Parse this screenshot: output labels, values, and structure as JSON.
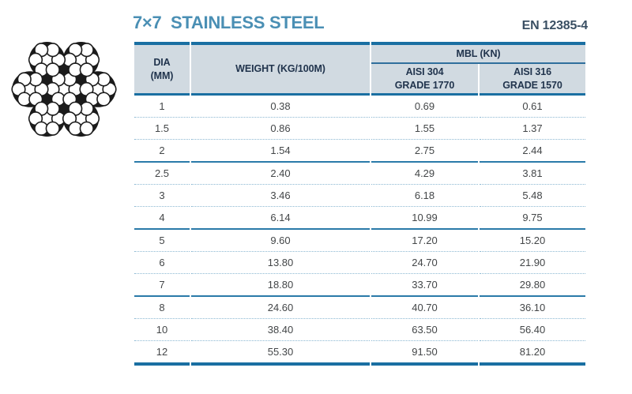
{
  "header": {
    "title": "7×7  STAINLESS STEEL",
    "standard": "EN 12385-4"
  },
  "diagram": {
    "name": "7x7-wire-rope-cross-section",
    "strands": 7,
    "wires_per_strand": 7
  },
  "table": {
    "columns": {
      "dia": [
        "DIA",
        "(MM)"
      ],
      "weight": "WEIGHT (KG/100M)",
      "mbl": "MBL (KN)",
      "aisi304": [
        "AISI 304",
        "GRADE 1770"
      ],
      "aisi316": [
        "AISI 316",
        "GRADE 1570"
      ]
    },
    "rows": [
      {
        "dia": "1",
        "weight": "0.38",
        "aisi304": "0.69",
        "aisi316": "0.61",
        "group_end": false
      },
      {
        "dia": "1.5",
        "weight": "0.86",
        "aisi304": "1.55",
        "aisi316": "1.37",
        "group_end": false
      },
      {
        "dia": "2",
        "weight": "1.54",
        "aisi304": "2.75",
        "aisi316": "2.44",
        "group_end": true
      },
      {
        "dia": "2.5",
        "weight": "2.40",
        "aisi304": "4.29",
        "aisi316": "3.81",
        "group_end": false
      },
      {
        "dia": "3",
        "weight": "3.46",
        "aisi304": "6.18",
        "aisi316": "5.48",
        "group_end": false
      },
      {
        "dia": "4",
        "weight": "6.14",
        "aisi304": "10.99",
        "aisi316": "9.75",
        "group_end": true
      },
      {
        "dia": "5",
        "weight": "9.60",
        "aisi304": "17.20",
        "aisi316": "15.20",
        "group_end": false
      },
      {
        "dia": "6",
        "weight": "13.80",
        "aisi304": "24.70",
        "aisi316": "21.90",
        "group_end": false
      },
      {
        "dia": "7",
        "weight": "18.80",
        "aisi304": "33.70",
        "aisi316": "29.80",
        "group_end": true
      },
      {
        "dia": "8",
        "weight": "24.60",
        "aisi304": "40.70",
        "aisi316": "36.10",
        "group_end": false
      },
      {
        "dia": "10",
        "weight": "38.40",
        "aisi304": "63.50",
        "aisi316": "56.40",
        "group_end": false
      },
      {
        "dia": "12",
        "weight": "55.30",
        "aisi304": "91.50",
        "aisi316": "81.20",
        "group_end": false
      }
    ]
  },
  "colors": {
    "accent": "#1a6fa2",
    "rule": "#2a7aa9",
    "dotted": "#8cb8d2",
    "band": "#d1dae1",
    "header-text": "#21344d",
    "title": "#4a8fb4",
    "standard-text": "#3a4f63",
    "body-text": "#434648",
    "ink": "#1b1b1b",
    "page-bg": "#ffffff"
  }
}
